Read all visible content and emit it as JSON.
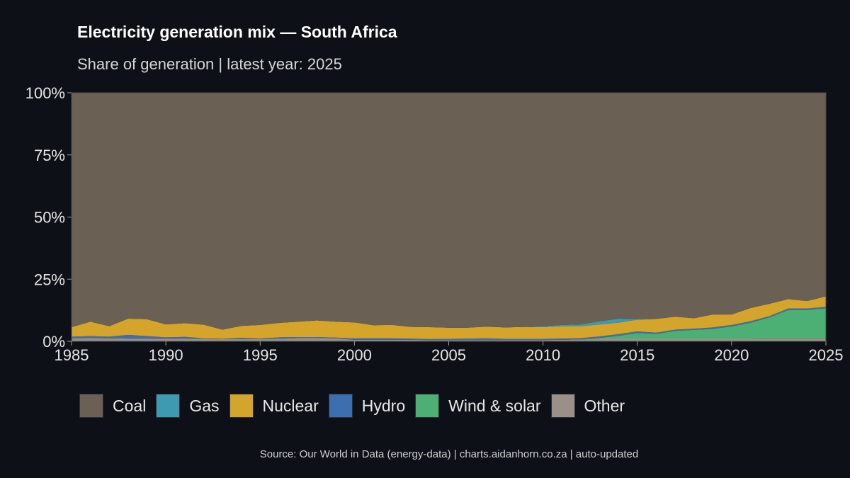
{
  "chart_data": {
    "type": "area",
    "stacked": true,
    "title": "Electricity generation mix — South Africa",
    "subtitle": "Share of generation | latest year: 2025",
    "xlabel": "",
    "ylabel": "",
    "xlim": [
      1985,
      2025
    ],
    "ylim": [
      0,
      100
    ],
    "x_ticks": [
      "1985",
      "1990",
      "1995",
      "2000",
      "2005",
      "2010",
      "2015",
      "2020",
      "2025"
    ],
    "y_ticks": [
      "0%",
      "25%",
      "50%",
      "75%",
      "100%"
    ],
    "legend_position": "bottom",
    "grid": false,
    "x": [
      1985,
      1986,
      1987,
      1988,
      1989,
      1990,
      1991,
      1992,
      1993,
      1994,
      1995,
      1996,
      1997,
      1998,
      1999,
      2000,
      2001,
      2002,
      2003,
      2004,
      2005,
      2006,
      2007,
      2008,
      2009,
      2010,
      2011,
      2012,
      2013,
      2014,
      2015,
      2016,
      2017,
      2018,
      2019,
      2020,
      2021,
      2022,
      2023,
      2024,
      2025
    ],
    "series": [
      {
        "name": "Other",
        "color": "#9a9088",
        "values": [
          1.2,
          1.3,
          1.2,
          1.1,
          1.1,
          1.0,
          1.1,
          1.0,
          0.9,
          0.9,
          0.9,
          1.0,
          1.3,
          1.3,
          1.2,
          0.6,
          0.6,
          0.6,
          0.6,
          0.5,
          0.5,
          0.5,
          0.5,
          0.5,
          0.5,
          0.5,
          0.6,
          0.8,
          1.0,
          1.0,
          1.0,
          1.0,
          1.0,
          1.0,
          1.0,
          1.0,
          1.0,
          1.1,
          1.1,
          1.1,
          1.1
        ]
      },
      {
        "name": "Wind & solar",
        "color": "#4caf73",
        "values": [
          0,
          0,
          0,
          0,
          0,
          0,
          0,
          0,
          0,
          0,
          0,
          0,
          0,
          0,
          0,
          0,
          0,
          0,
          0,
          0,
          0,
          0,
          0,
          0,
          0,
          0,
          0,
          0,
          0.4,
          1.2,
          2.4,
          2.0,
          3.2,
          3.6,
          4.0,
          5.0,
          6.5,
          8.5,
          11.5,
          11.5,
          12.2
        ]
      },
      {
        "name": "Hydro",
        "color": "#3d6fb0",
        "values": [
          0.7,
          0.8,
          0.7,
          1.5,
          1.0,
          0.6,
          0.7,
          0.2,
          0.1,
          0.5,
          0.2,
          0.6,
          0.4,
          0.4,
          0.3,
          0.6,
          0.7,
          0.6,
          0.5,
          0.4,
          0.5,
          0.6,
          0.7,
          0.5,
          0.5,
          0.5,
          0.5,
          0.5,
          0.6,
          0.7,
          0.6,
          0.5,
          0.5,
          0.5,
          0.6,
          0.6,
          0.6,
          0.5,
          0.6,
          0.6,
          0.6
        ]
      },
      {
        "name": "Nuclear",
        "color": "#d4a52a",
        "values": [
          3.8,
          5.8,
          4.2,
          6.5,
          6.8,
          5.2,
          5.5,
          5.5,
          3.7,
          4.8,
          5.5,
          5.8,
          6.2,
          6.7,
          6.4,
          6.4,
          5.2,
          5.4,
          4.7,
          4.8,
          4.5,
          4.4,
          4.7,
          4.6,
          4.8,
          4.7,
          5.0,
          4.8,
          4.8,
          4.6,
          4.7,
          5.5,
          5.2,
          4.2,
          5.2,
          4.2,
          5.3,
          5.0,
          3.8,
          3.0,
          4.2
        ]
      },
      {
        "name": "Gas",
        "color": "#3d9ab0",
        "values": [
          0,
          0,
          0,
          0,
          0,
          0,
          0,
          0,
          0,
          0,
          0,
          0,
          0,
          0,
          0,
          0,
          0,
          0,
          0,
          0,
          0,
          0,
          0,
          0,
          0,
          0.4,
          0.5,
          0.7,
          1.3,
          1.6,
          0.3,
          0,
          0,
          0,
          0,
          0,
          0,
          0,
          0,
          0,
          0
        ]
      },
      {
        "name": "Coal",
        "color": "#6b6054",
        "values": [
          94.3,
          92.1,
          93.9,
          90.9,
          91.1,
          93.2,
          92.7,
          93.3,
          95.3,
          93.8,
          93.4,
          92.6,
          92.1,
          91.6,
          92.1,
          92.4,
          93.5,
          93.4,
          94.2,
          94.3,
          94.5,
          94.5,
          94.1,
          94.4,
          94.2,
          93.9,
          93.4,
          93.2,
          91.9,
          90.9,
          91.0,
          91.0,
          90.1,
          90.7,
          89.2,
          89.2,
          86.6,
          84.9,
          83.0,
          83.8,
          81.9
        ]
      }
    ]
  },
  "legend": [
    {
      "label": "Coal",
      "color": "#6b6054"
    },
    {
      "label": "Gas",
      "color": "#3d9ab0"
    },
    {
      "label": "Nuclear",
      "color": "#d4a52a"
    },
    {
      "label": "Hydro",
      "color": "#3d6fb0"
    },
    {
      "label": "Wind & solar",
      "color": "#4caf73"
    },
    {
      "label": "Other",
      "color": "#9a9088"
    }
  ],
  "caption": "Source: Our World in Data (energy-data) | charts.aidanhorn.co.za | auto-updated"
}
